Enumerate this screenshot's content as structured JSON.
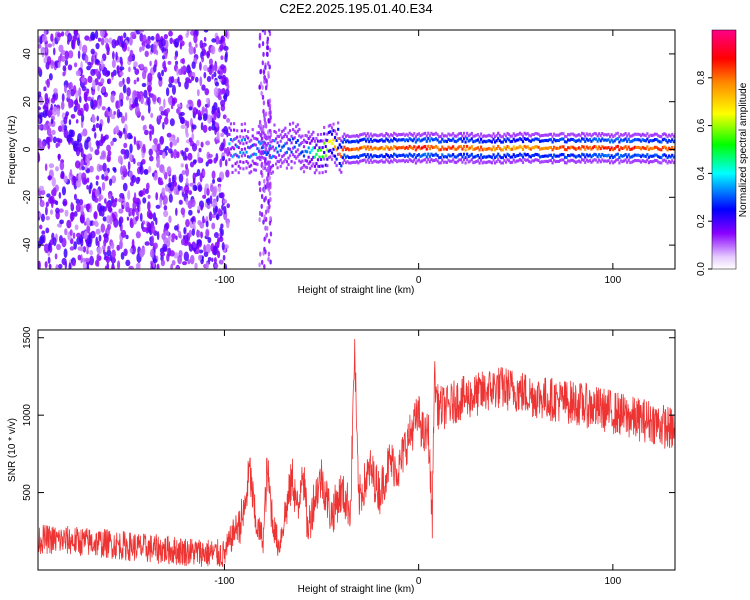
{
  "chart_data": [
    {
      "type": "heatmap",
      "title": "C2E2.2025.195.01.40.E34",
      "xlabel": "Height of straight line (km)",
      "ylabel": "Frequency (Hz)",
      "xlim": [
        -196,
        132
      ],
      "ylim": [
        -50,
        50
      ],
      "x_ticks": [
        -100,
        0,
        100
      ],
      "y_ticks": [
        -40,
        -20,
        0,
        20,
        40
      ],
      "colorbar": {
        "label": "Normalized spectral amplitude",
        "range": [
          0,
          1
        ],
        "ticks": [
          0.0,
          0.2,
          0.4,
          0.6,
          0.8
        ],
        "colormap": [
          "#ffffff",
          "#8800ff",
          "#0000ff",
          "#00ffff",
          "#00ff00",
          "#ffff00",
          "#ff8800",
          "#ff0000",
          "#ff0088"
        ]
      },
      "features": {
        "noise_region_x": [
          -196,
          -98
        ],
        "noise_stripe_x": [
          -82,
          -76
        ],
        "signal_onset_x": -98,
        "signal_center_frequency": 0,
        "signal_level_by_height": [
          {
            "x": -98,
            "amplitude": 0.35
          },
          {
            "x": -60,
            "amplitude": 0.3
          },
          {
            "x": -40,
            "amplitude": 0.85
          },
          {
            "x": -20,
            "amplitude": 0.8
          },
          {
            "x": 0,
            "amplitude": 0.9
          },
          {
            "x": 50,
            "amplitude": 0.8
          },
          {
            "x": 100,
            "amplitude": 0.9
          },
          {
            "x": 132,
            "amplitude": 0.85
          }
        ]
      },
      "grid": false
    },
    {
      "type": "line",
      "title": "",
      "xlabel": "Height of straight line (km)",
      "ylabel": "SNR (10 * v/v)",
      "xlim": [
        -196,
        132
      ],
      "ylim": [
        0,
        1550
      ],
      "x_ticks": [
        -100,
        0,
        100
      ],
      "y_ticks": [
        500,
        1000,
        1500
      ],
      "color": "#ee3333",
      "series": [
        {
          "x": [
            -196,
            -180,
            -160,
            -140,
            -120,
            -110,
            -100,
            -95,
            -90,
            -87,
            -84,
            -80,
            -78,
            -75,
            -72,
            -68,
            -65,
            -62,
            -60,
            -57,
            -54,
            -50,
            -45,
            -40,
            -35,
            -33,
            -31,
            -28,
            -25,
            -20,
            -15,
            -10,
            -7,
            -5,
            -2,
            0,
            3,
            5,
            7,
            8,
            10,
            15,
            20,
            30,
            40,
            50,
            60,
            70,
            80,
            90,
            100,
            110,
            120,
            132
          ],
          "values": [
            200,
            190,
            170,
            140,
            120,
            110,
            100,
            250,
            350,
            650,
            300,
            200,
            650,
            300,
            150,
            400,
            600,
            350,
            700,
            250,
            450,
            600,
            350,
            500,
            400,
            1450,
            450,
            550,
            650,
            500,
            700,
            650,
            800,
            850,
            950,
            1000,
            850,
            900,
            300,
            1250,
            1050,
            1050,
            1100,
            1130,
            1180,
            1160,
            1120,
            1100,
            1080,
            1050,
            1020,
            980,
            960,
            900
          ]
        }
      ],
      "grid": false
    }
  ]
}
